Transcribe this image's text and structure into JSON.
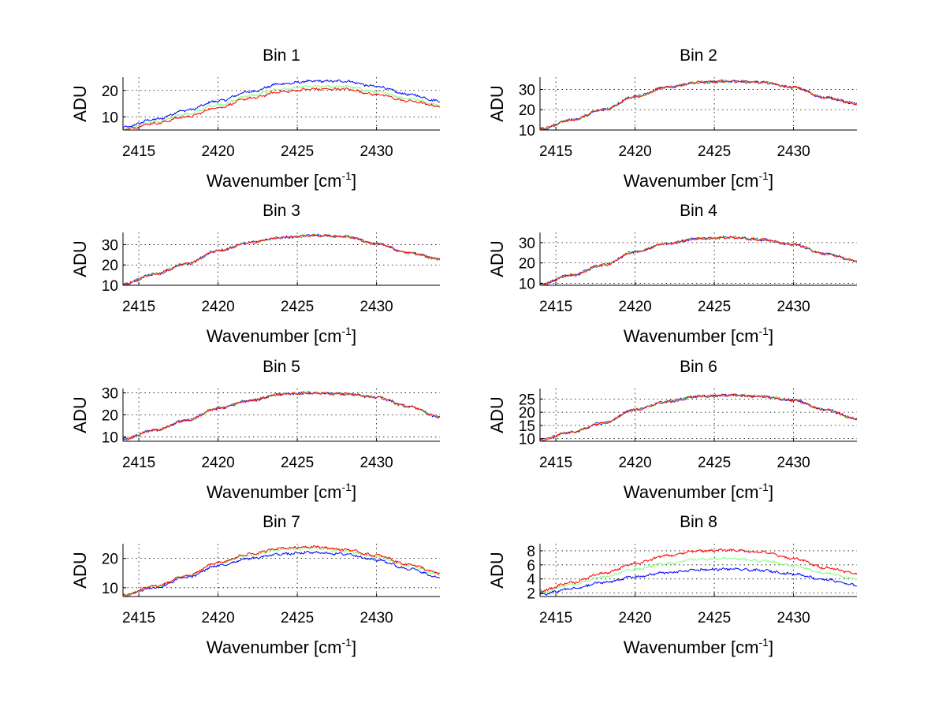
{
  "chart_data": [
    {
      "type": "line",
      "title": "Bin 1",
      "xlabel": "Wavenumber [cm",
      "xlabel_sup": "-1",
      "xlabel_end": "]",
      "ylabel": "ADU",
      "xlim": [
        2414,
        2434
      ],
      "ylim": [
        5,
        25
      ],
      "xticks": [
        2415,
        2420,
        2425,
        2430
      ],
      "yticks": [
        10,
        20
      ],
      "grid": true,
      "series": [
        {
          "color": "#0000ff",
          "x": [
            2414,
            2416,
            2418,
            2420,
            2422,
            2424,
            2426,
            2428,
            2430,
            2432,
            2434
          ],
          "y": [
            6,
            9,
            12.5,
            16,
            19.5,
            22.5,
            23.5,
            23.5,
            21.5,
            18.5,
            16
          ]
        },
        {
          "color": "#80ff80",
          "x": [
            2414,
            2416,
            2418,
            2420,
            2422,
            2424,
            2426,
            2428,
            2430,
            2432,
            2434
          ],
          "y": [
            5.5,
            8,
            11,
            14.5,
            18,
            20.5,
            21.5,
            21.5,
            19.5,
            17,
            14.5
          ]
        },
        {
          "color": "#ff0000",
          "x": [
            2414,
            2416,
            2418,
            2420,
            2422,
            2424,
            2426,
            2428,
            2430,
            2432,
            2434
          ],
          "y": [
            5.2,
            7.5,
            10,
            13.5,
            17,
            19.5,
            20.5,
            20.5,
            18.5,
            16,
            14
          ]
        }
      ]
    },
    {
      "type": "line",
      "title": "Bin 2",
      "xlabel": "Wavenumber [cm",
      "xlabel_sup": "-1",
      "xlabel_end": "]",
      "ylabel": "ADU",
      "xlim": [
        2414,
        2434
      ],
      "ylim": [
        10,
        36
      ],
      "xticks": [
        2415,
        2420,
        2425,
        2430
      ],
      "yticks": [
        10,
        20,
        30
      ],
      "grid": true,
      "series": [
        {
          "color": "#0000ff",
          "x": [
            2414,
            2416,
            2418,
            2420,
            2422,
            2424,
            2426,
            2428,
            2430,
            2432,
            2434
          ],
          "y": [
            10.5,
            15,
            20,
            26.5,
            31,
            33.5,
            34,
            33.5,
            31,
            26,
            23
          ]
        },
        {
          "color": "#80ff80",
          "x": [
            2414,
            2416,
            2418,
            2420,
            2422,
            2424,
            2426,
            2428,
            2430,
            2432,
            2434
          ],
          "y": [
            10.5,
            15,
            20,
            26.5,
            31,
            33.5,
            34,
            33.5,
            31,
            26,
            23
          ]
        },
        {
          "color": "#ff0000",
          "x": [
            2414,
            2416,
            2418,
            2420,
            2422,
            2424,
            2426,
            2428,
            2430,
            2432,
            2434
          ],
          "y": [
            10.5,
            15,
            20,
            26.5,
            31,
            33.5,
            34,
            33.5,
            31,
            26,
            23
          ]
        }
      ]
    },
    {
      "type": "line",
      "title": "Bin 3",
      "xlabel": "Wavenumber [cm",
      "xlabel_sup": "-1",
      "xlabel_end": "]",
      "ylabel": "ADU",
      "xlim": [
        2414,
        2434
      ],
      "ylim": [
        10,
        36
      ],
      "xticks": [
        2415,
        2420,
        2425,
        2430
      ],
      "yticks": [
        10,
        20,
        30
      ],
      "grid": true,
      "series": [
        {
          "color": "#0000ff",
          "x": [
            2414,
            2416,
            2418,
            2420,
            2422,
            2424,
            2426,
            2428,
            2430,
            2432,
            2434
          ],
          "y": [
            10.5,
            15.5,
            20.5,
            27,
            31,
            33.5,
            34.5,
            34,
            30.5,
            26,
            23
          ]
        },
        {
          "color": "#80ff80",
          "x": [
            2414,
            2416,
            2418,
            2420,
            2422,
            2424,
            2426,
            2428,
            2430,
            2432,
            2434
          ],
          "y": [
            10.5,
            15.5,
            20.5,
            27,
            31,
            33.5,
            34.5,
            34,
            30.5,
            26,
            23
          ]
        },
        {
          "color": "#ff0000",
          "x": [
            2414,
            2416,
            2418,
            2420,
            2422,
            2424,
            2426,
            2428,
            2430,
            2432,
            2434
          ],
          "y": [
            10.5,
            15.5,
            20.5,
            27,
            31,
            33.5,
            34.5,
            34,
            30.5,
            26,
            23
          ]
        }
      ]
    },
    {
      "type": "line",
      "title": "Bin 4",
      "xlabel": "Wavenumber [cm",
      "xlabel_sup": "-1",
      "xlabel_end": "]",
      "ylabel": "ADU",
      "xlim": [
        2414,
        2434
      ],
      "ylim": [
        9,
        35
      ],
      "xticks": [
        2415,
        2420,
        2425,
        2430
      ],
      "yticks": [
        10,
        20,
        30
      ],
      "grid": true,
      "series": [
        {
          "color": "#0000ff",
          "x": [
            2414,
            2416,
            2418,
            2420,
            2422,
            2424,
            2426,
            2428,
            2430,
            2432,
            2434
          ],
          "y": [
            9.5,
            14,
            19,
            25.5,
            29.5,
            32,
            32.5,
            31.5,
            29,
            24.5,
            21
          ]
        },
        {
          "color": "#80ff80",
          "x": [
            2414,
            2416,
            2418,
            2420,
            2422,
            2424,
            2426,
            2428,
            2430,
            2432,
            2434
          ],
          "y": [
            9.5,
            14,
            19,
            25.5,
            29.5,
            32,
            32.5,
            31.5,
            29,
            24.5,
            21
          ]
        },
        {
          "color": "#ff0000",
          "x": [
            2414,
            2416,
            2418,
            2420,
            2422,
            2424,
            2426,
            2428,
            2430,
            2432,
            2434
          ],
          "y": [
            9.5,
            14,
            19,
            25.5,
            29.5,
            32,
            32.5,
            31.5,
            29,
            24.5,
            21
          ]
        }
      ]
    },
    {
      "type": "line",
      "title": "Bin 5",
      "xlabel": "Wavenumber [cm",
      "xlabel_sup": "-1",
      "xlabel_end": "]",
      "ylabel": "ADU",
      "xlim": [
        2414,
        2434
      ],
      "ylim": [
        8,
        32
      ],
      "xticks": [
        2415,
        2420,
        2425,
        2430
      ],
      "yticks": [
        10,
        20,
        30
      ],
      "grid": true,
      "series": [
        {
          "color": "#0000ff",
          "x": [
            2414,
            2416,
            2418,
            2420,
            2422,
            2424,
            2426,
            2428,
            2430,
            2432,
            2434
          ],
          "y": [
            9,
            13,
            17.5,
            23,
            26.5,
            29.5,
            30,
            29.5,
            28,
            24,
            19
          ]
        },
        {
          "color": "#80ff80",
          "x": [
            2414,
            2416,
            2418,
            2420,
            2422,
            2424,
            2426,
            2428,
            2430,
            2432,
            2434
          ],
          "y": [
            9,
            13,
            17.5,
            23,
            26.5,
            29.5,
            30,
            29.5,
            28,
            24,
            19
          ]
        },
        {
          "color": "#ff0000",
          "x": [
            2414,
            2416,
            2418,
            2420,
            2422,
            2424,
            2426,
            2428,
            2430,
            2432,
            2434
          ],
          "y": [
            9,
            13,
            17.5,
            23,
            26.5,
            29.5,
            30,
            29.5,
            28,
            24,
            19
          ]
        }
      ]
    },
    {
      "type": "line",
      "title": "Bin 6",
      "xlabel": "Wavenumber [cm",
      "xlabel_sup": "-1",
      "xlabel_end": "]",
      "ylabel": "ADU",
      "xlim": [
        2414,
        2434
      ],
      "ylim": [
        9,
        29
      ],
      "xticks": [
        2415,
        2420,
        2425,
        2430
      ],
      "yticks": [
        10,
        15,
        20,
        25
      ],
      "grid": true,
      "series": [
        {
          "color": "#0000ff",
          "x": [
            2414,
            2416,
            2418,
            2420,
            2422,
            2424,
            2426,
            2428,
            2430,
            2432,
            2434
          ],
          "y": [
            9.5,
            12.5,
            16,
            21,
            24,
            26,
            26.5,
            26,
            24.5,
            21,
            17.5
          ]
        },
        {
          "color": "#80ff80",
          "x": [
            2414,
            2416,
            2418,
            2420,
            2422,
            2424,
            2426,
            2428,
            2430,
            2432,
            2434
          ],
          "y": [
            9.5,
            12.5,
            16,
            21,
            24,
            26,
            26.5,
            26,
            24.5,
            21,
            17.5
          ]
        },
        {
          "color": "#ff0000",
          "x": [
            2414,
            2416,
            2418,
            2420,
            2422,
            2424,
            2426,
            2428,
            2430,
            2432,
            2434
          ],
          "y": [
            9.5,
            12.5,
            16,
            21,
            24,
            26,
            26.5,
            26,
            24.5,
            21,
            17.5
          ]
        }
      ]
    },
    {
      "type": "line",
      "title": "Bin 7",
      "xlabel": "Wavenumber [cm",
      "xlabel_sup": "-1",
      "xlabel_end": "]",
      "ylabel": "ADU",
      "xlim": [
        2414,
        2434
      ],
      "ylim": [
        7,
        25
      ],
      "xticks": [
        2415,
        2420,
        2425,
        2430
      ],
      "yticks": [
        10,
        20
      ],
      "grid": true,
      "series": [
        {
          "color": "#0000ff",
          "x": [
            2414,
            2416,
            2418,
            2420,
            2422,
            2424,
            2426,
            2428,
            2430,
            2432,
            2434
          ],
          "y": [
            7.5,
            10,
            13.5,
            17.5,
            20,
            21.5,
            22,
            21.5,
            19.5,
            16.5,
            13.5
          ]
        },
        {
          "color": "#80ff80",
          "x": [
            2414,
            2416,
            2418,
            2420,
            2422,
            2424,
            2426,
            2428,
            2430,
            2432,
            2434
          ],
          "y": [
            7.5,
            10.5,
            14,
            18.5,
            21,
            23,
            23.5,
            22.5,
            20.5,
            17.5,
            14.5
          ]
        },
        {
          "color": "#ff0000",
          "x": [
            2414,
            2416,
            2418,
            2420,
            2422,
            2424,
            2426,
            2428,
            2430,
            2432,
            2434
          ],
          "y": [
            7.5,
            10.5,
            14,
            18.5,
            21.5,
            23.5,
            24,
            23,
            21,
            18,
            15
          ]
        }
      ]
    },
    {
      "type": "line",
      "title": "Bin 8",
      "xlabel": "Wavenumber [cm",
      "xlabel_sup": "-1",
      "xlabel_end": "]",
      "ylabel": "ADU",
      "xlim": [
        2414,
        2434
      ],
      "ylim": [
        1.5,
        9
      ],
      "xticks": [
        2415,
        2420,
        2425,
        2430
      ],
      "yticks": [
        2,
        4,
        6,
        8
      ],
      "grid": true,
      "series": [
        {
          "color": "#0000ff",
          "x": [
            2414,
            2416,
            2418,
            2420,
            2422,
            2424,
            2426,
            2428,
            2430,
            2432,
            2434
          ],
          "y": [
            1.8,
            2.6,
            3.5,
            4.3,
            4.9,
            5.3,
            5.4,
            5.2,
            4.7,
            3.9,
            3.1
          ]
        },
        {
          "color": "#80ff80",
          "x": [
            2414,
            2416,
            2418,
            2420,
            2422,
            2424,
            2426,
            2428,
            2430,
            2432,
            2434
          ],
          "y": [
            2.1,
            3.2,
            4.3,
            5.4,
            6.2,
            6.8,
            6.9,
            6.6,
            5.9,
            4.8,
            4
          ]
        },
        {
          "color": "#ff0000",
          "x": [
            2414,
            2416,
            2418,
            2420,
            2422,
            2424,
            2426,
            2428,
            2430,
            2432,
            2434
          ],
          "y": [
            2.3,
            3.5,
            4.8,
            6.2,
            7.3,
            8,
            8.1,
            7.8,
            6.9,
            5.6,
            4.8
          ]
        }
      ]
    }
  ]
}
